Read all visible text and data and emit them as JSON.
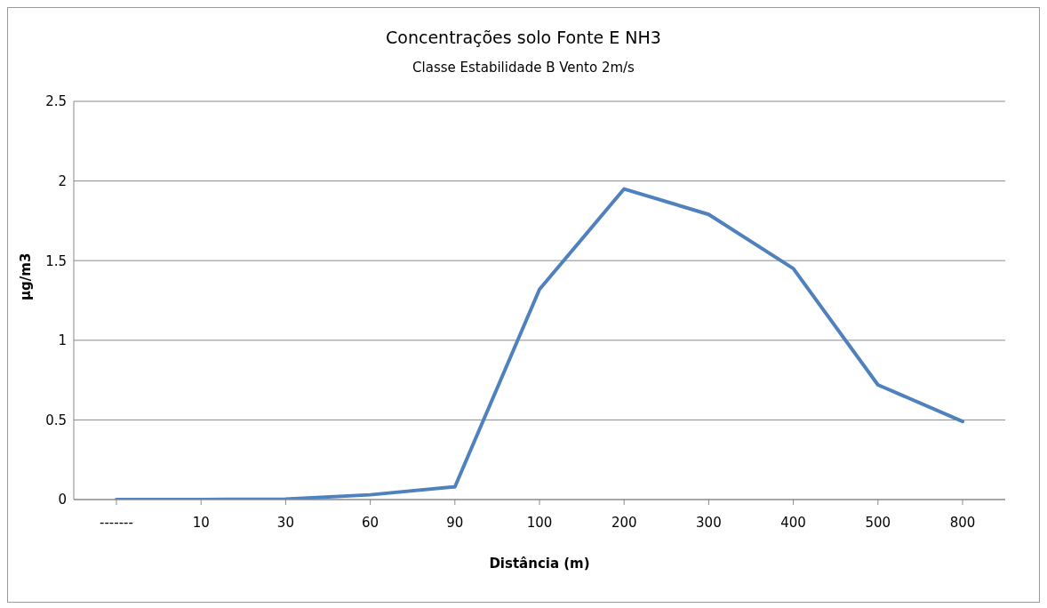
{
  "chart_data": {
    "type": "line",
    "title": "Concentrações solo Fonte E NH3",
    "subtitle": "Classe Estabilidade  B Vento 2m/s",
    "xlabel": "Distância  (m)",
    "ylabel": "µg/m3",
    "categories": [
      "-------",
      "10",
      "30",
      "60",
      "90",
      "100",
      "200",
      "300",
      "400",
      "500",
      "800"
    ],
    "series": [
      {
        "color": "#4f81bd",
        "values": [
          0,
          0,
          0.003,
          0.03,
          0.08,
          1.32,
          1.95,
          1.79,
          1.45,
          0.72,
          0.49
        ]
      }
    ],
    "ylim": [
      0,
      2.5
    ],
    "yticks": [
      0,
      0.5,
      1,
      1.5,
      2,
      2.5
    ],
    "grid": "y",
    "legend": false,
    "marker": "none",
    "line_style": "solid"
  }
}
